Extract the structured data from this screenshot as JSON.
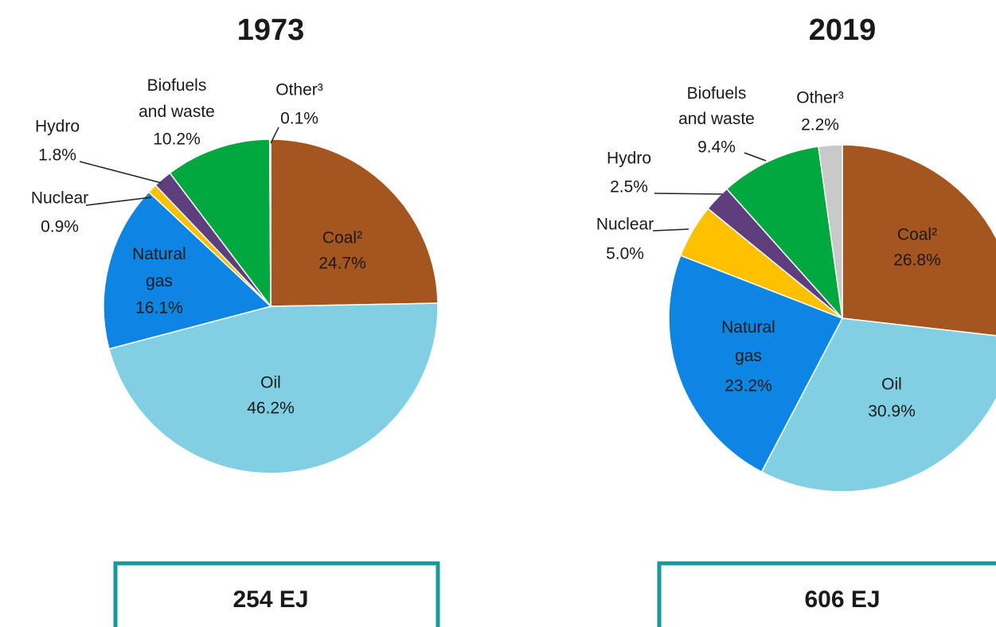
{
  "chart_data": [
    {
      "type": "pie",
      "title": "1973",
      "annotation": "254 EJ",
      "categories": [
        "Coal²",
        "Oil",
        "Natural gas",
        "Nuclear",
        "Hydro",
        "Biofuels and waste",
        "Other³"
      ],
      "values": [
        24.7,
        46.2,
        16.1,
        0.9,
        1.8,
        10.2,
        0.1
      ],
      "value_labels": [
        "24.7%",
        "46.2%",
        "16.1%",
        "0.9%",
        "1.8%",
        "10.2%",
        "0.1%"
      ],
      "colors": [
        "#a5561f",
        "#80cfe2",
        "#0d86e3",
        "#ffc000",
        "#5e3e7c",
        "#00a83f",
        "#c9c9c9"
      ]
    },
    {
      "type": "pie",
      "title": "2019",
      "annotation": "606 EJ",
      "categories": [
        "Coal²",
        "Oil",
        "Natural gas",
        "Nuclear",
        "Hydro",
        "Biofuels and waste",
        "Other³"
      ],
      "values": [
        26.8,
        30.9,
        23.2,
        5.0,
        2.5,
        9.4,
        2.2
      ],
      "value_labels": [
        "26.8%",
        "30.9%",
        "23.2%",
        "5.0%",
        "2.5%",
        "9.4%",
        "2.2%"
      ],
      "colors": [
        "#a5561f",
        "#80cfe2",
        "#0d86e3",
        "#ffc000",
        "#5e3e7c",
        "#00a83f",
        "#c9c9c9"
      ]
    }
  ]
}
